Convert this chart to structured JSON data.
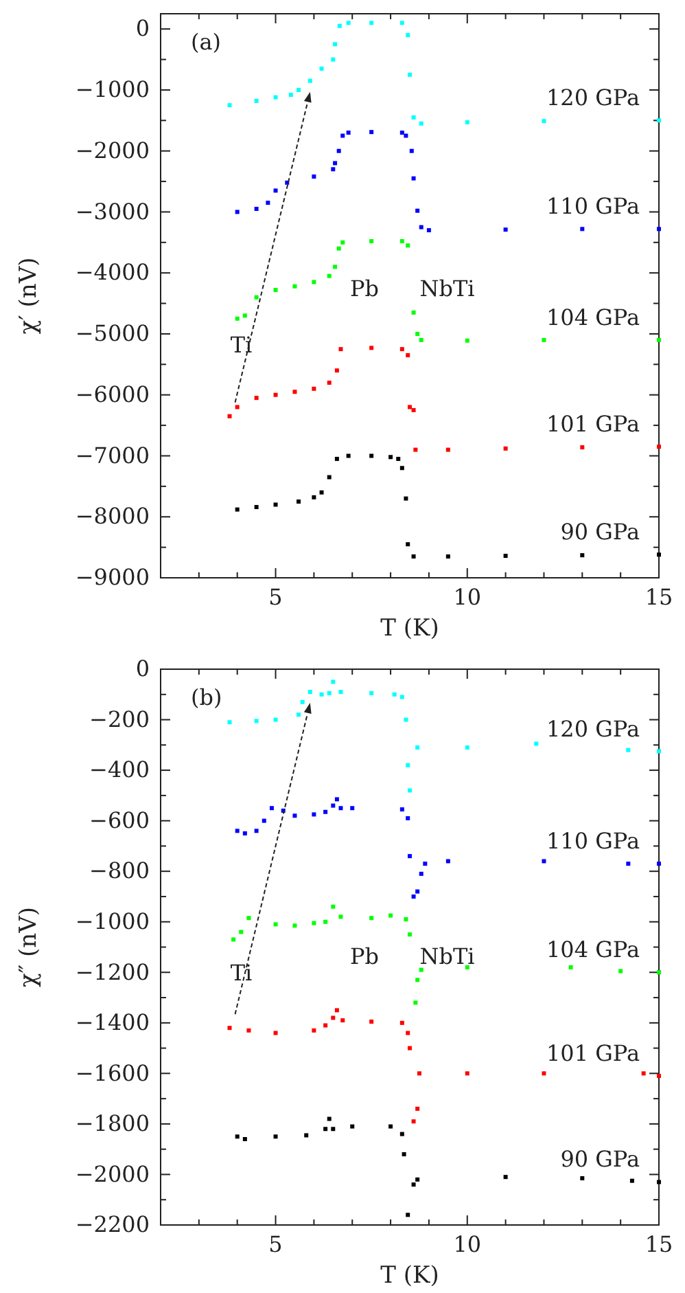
{
  "chart_data": [
    {
      "type": "scatter",
      "title": "(a)",
      "xlabel": "T (K)",
      "ylabel": "χ′ (nV)",
      "marker": "square",
      "xlim": [
        2,
        15
      ],
      "ylim": [
        -9000,
        250
      ],
      "xticks": [
        {
          "value": 3,
          "label": null
        },
        {
          "value": 4,
          "label": null
        },
        5,
        {
          "value": 6,
          "label": null
        },
        {
          "value": 7,
          "label": null
        },
        {
          "value": 8,
          "label": null
        },
        {
          "value": 9,
          "label": null
        },
        10,
        {
          "value": 11,
          "label": null
        },
        {
          "value": 12,
          "label": null
        },
        {
          "value": 13,
          "label": null
        },
        {
          "value": 14,
          "label": null
        },
        15
      ],
      "yticks": [
        -9000,
        {
          "value": -8500,
          "label": null
        },
        -8000,
        {
          "value": -7500,
          "label": null
        },
        -7000,
        {
          "value": -6500,
          "label": null
        },
        -6000,
        {
          "value": -5500,
          "label": null
        },
        -5000,
        {
          "value": -4500,
          "label": null
        },
        -4000,
        {
          "value": -3500,
          "label": null
        },
        -3000,
        {
          "value": -2500,
          "label": null
        },
        -2000,
        {
          "value": -1500,
          "label": null
        },
        -1000,
        {
          "value": -500,
          "label": null
        },
        0
      ],
      "annotations": [
        "Ti",
        "Pb",
        "NbTi"
      ],
      "series": [
        {
          "name": "90 GPa",
          "color": "#000000",
          "x": [
            4.0,
            4.5,
            5.0,
            5.6,
            6.0,
            6.2,
            6.4,
            6.6,
            6.9,
            7.5,
            8.0,
            8.2,
            8.3,
            8.4,
            8.45,
            8.6,
            9.5,
            11,
            13,
            15
          ],
          "values": [
            -7880,
            -7840,
            -7800,
            -7750,
            -7680,
            -7600,
            -7350,
            -7050,
            -7000,
            -7000,
            -7020,
            -7050,
            -7200,
            -7700,
            -8450,
            -8650,
            -8650,
            -8640,
            -8630,
            -8620
          ]
        },
        {
          "name": "101 GPa",
          "color": "#ff0000",
          "x": [
            3.8,
            4.0,
            4.5,
            5.0,
            5.5,
            6.0,
            6.4,
            6.6,
            6.7,
            7.5,
            8.3,
            8.45,
            8.5,
            8.6,
            8.65,
            9.5,
            11,
            13,
            15
          ],
          "values": [
            -6350,
            -6200,
            -6050,
            -6000,
            -5950,
            -5900,
            -5800,
            -5600,
            -5250,
            -5230,
            -5250,
            -5350,
            -6200,
            -6250,
            -6900,
            -6900,
            -6880,
            -6860,
            -6850
          ]
        },
        {
          "name": "104 GPa",
          "color": "#00ff00",
          "x": [
            4.0,
            4.2,
            4.5,
            5.0,
            5.5,
            6.0,
            6.4,
            6.55,
            6.65,
            6.75,
            7.5,
            8.3,
            8.45,
            8.6,
            8.7,
            8.8,
            10,
            12,
            15
          ],
          "values": [
            -4750,
            -4700,
            -4400,
            -4280,
            -4220,
            -4150,
            -4050,
            -3900,
            -3600,
            -3500,
            -3480,
            -3480,
            -3550,
            -4650,
            -5000,
            -5100,
            -5110,
            -5100,
            -5100
          ]
        },
        {
          "name": "110 GPa",
          "color": "#0000ff",
          "x": [
            4.0,
            4.5,
            4.8,
            5.0,
            5.3,
            6.0,
            6.5,
            6.55,
            6.65,
            6.75,
            6.9,
            7.5,
            8.3,
            8.4,
            8.55,
            8.6,
            8.7,
            8.8,
            9.0,
            11,
            13,
            15
          ],
          "values": [
            -3000,
            -2950,
            -2850,
            -2650,
            -2520,
            -2420,
            -2300,
            -2200,
            -2000,
            -1750,
            -1700,
            -1690,
            -1700,
            -1750,
            -2000,
            -2450,
            -2980,
            -3250,
            -3300,
            -3290,
            -3280,
            -3280
          ]
        },
        {
          "name": "120 GPa",
          "color": "#00ffff",
          "x": [
            3.8,
            4.5,
            5.0,
            5.4,
            5.6,
            5.9,
            6.2,
            6.5,
            6.55,
            6.67,
            6.9,
            7.5,
            8.3,
            8.45,
            8.5,
            8.6,
            8.8,
            10,
            12,
            15
          ],
          "values": [
            -1250,
            -1180,
            -1120,
            -1080,
            -1000,
            -850,
            -650,
            -500,
            -250,
            50,
            100,
            100,
            100,
            -100,
            -750,
            -1450,
            -1550,
            -1530,
            -1510,
            -1500
          ]
        }
      ]
    },
    {
      "type": "scatter",
      "title": "(b)",
      "xlabel": "T (K)",
      "ylabel": "χ″ (nV)",
      "marker": "square",
      "xlim": [
        2,
        15
      ],
      "ylim": [
        -2200,
        0
      ],
      "xticks": [
        {
          "value": 3,
          "label": null
        },
        {
          "value": 4,
          "label": null
        },
        5,
        {
          "value": 6,
          "label": null
        },
        {
          "value": 7,
          "label": null
        },
        {
          "value": 8,
          "label": null
        },
        {
          "value": 9,
          "label": null
        },
        10,
        {
          "value": 11,
          "label": null
        },
        {
          "value": 12,
          "label": null
        },
        {
          "value": 13,
          "label": null
        },
        {
          "value": 14,
          "label": null
        },
        15
      ],
      "yticks": [
        -2200,
        {
          "value": -2100,
          "label": null
        },
        -2000,
        {
          "value": -1900,
          "label": null
        },
        -1800,
        {
          "value": -1700,
          "label": null
        },
        -1600,
        {
          "value": -1500,
          "label": null
        },
        -1400,
        {
          "value": -1300,
          "label": null
        },
        -1200,
        {
          "value": -1100,
          "label": null
        },
        -1000,
        {
          "value": -900,
          "label": null
        },
        -800,
        {
          "value": -700,
          "label": null
        },
        -600,
        {
          "value": -500,
          "label": null
        },
        -400,
        {
          "value": -300,
          "label": null
        },
        -200,
        {
          "value": -100,
          "label": null
        },
        0
      ],
      "annotations": [
        "Ti",
        "Pb",
        "NbTi"
      ],
      "series": [
        {
          "name": "90 GPa",
          "color": "#000000",
          "x": [
            4.0,
            4.2,
            5.0,
            5.8,
            6.3,
            6.4,
            6.5,
            7.0,
            8.0,
            8.3,
            8.35,
            8.45,
            8.6,
            8.7,
            11,
            13,
            14.3,
            15
          ],
          "values": [
            -1850,
            -1860,
            -1850,
            -1845,
            -1820,
            -1780,
            -1820,
            -1810,
            -1810,
            -1840,
            -1920,
            -2160,
            -2040,
            -2020,
            -2010,
            -2015,
            -2025,
            -2030
          ]
        },
        {
          "name": "101 GPa",
          "color": "#ff0000",
          "x": [
            3.8,
            4.3,
            5.0,
            6.0,
            6.3,
            6.5,
            6.6,
            6.75,
            7.5,
            8.3,
            8.45,
            8.5,
            8.6,
            8.7,
            8.75,
            10,
            12,
            14.6,
            15
          ],
          "values": [
            -1420,
            -1430,
            -1440,
            -1430,
            -1410,
            -1380,
            -1350,
            -1390,
            -1395,
            -1400,
            -1440,
            -1500,
            -1790,
            -1740,
            -1600,
            -1600,
            -1600,
            -1600,
            -1610
          ]
        },
        {
          "name": "104 GPa",
          "color": "#00ff00",
          "x": [
            3.9,
            4.1,
            4.3,
            5.0,
            5.5,
            6.0,
            6.3,
            6.5,
            6.7,
            7.5,
            8.0,
            8.4,
            8.5,
            8.65,
            8.7,
            8.8,
            10,
            12.7,
            14,
            15
          ],
          "values": [
            -1070,
            -1040,
            -985,
            -1010,
            -1015,
            -1005,
            -1000,
            -940,
            -980,
            -985,
            -975,
            -990,
            -1050,
            -1320,
            -1230,
            -1190,
            -1180,
            -1180,
            -1195,
            -1200
          ]
        },
        {
          "name": "110 GPa",
          "color": "#0000ff",
          "x": [
            4.0,
            4.2,
            4.5,
            4.7,
            4.9,
            5.2,
            5.5,
            6.0,
            6.3,
            6.5,
            6.6,
            6.7,
            7.0,
            8.3,
            8.45,
            8.5,
            8.6,
            8.7,
            8.8,
            8.9,
            9.5,
            12,
            14.2,
            15
          ],
          "values": [
            -640,
            -650,
            -640,
            -600,
            -550,
            -560,
            -580,
            -575,
            -565,
            -540,
            -515,
            -550,
            -550,
            -555,
            -590,
            -740,
            -900,
            -880,
            -810,
            -770,
            -760,
            -760,
            -770,
            -770
          ]
        },
        {
          "name": "120 GPa",
          "color": "#00ffff",
          "x": [
            3.8,
            4.5,
            5.0,
            5.6,
            5.7,
            5.9,
            6.2,
            6.4,
            6.5,
            6.7,
            7.5,
            8.1,
            8.3,
            8.4,
            8.45,
            8.5,
            8.7,
            10,
            11.8,
            14.2,
            15
          ],
          "values": [
            -210,
            -205,
            -200,
            -180,
            -130,
            -90,
            -100,
            -95,
            -50,
            -90,
            -95,
            -100,
            -110,
            -200,
            -380,
            -480,
            -310,
            -310,
            -295,
            -320,
            -325
          ]
        }
      ]
    }
  ]
}
